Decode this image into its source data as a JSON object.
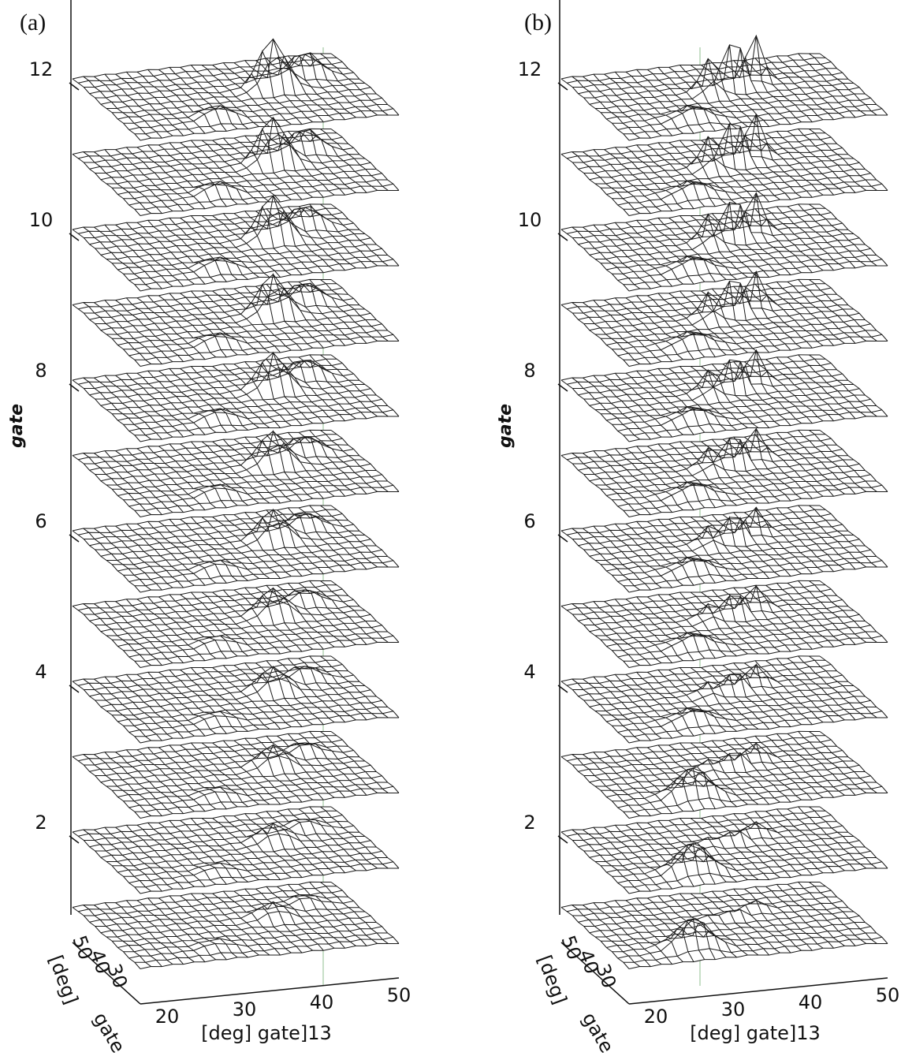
{
  "panels": [
    {
      "label": "(a)",
      "vertical_axis": {
        "title": "gate",
        "ticks": [
          "12",
          "10",
          "8",
          "6",
          "4",
          "2"
        ]
      },
      "depth_axis": {
        "ticks": [
          "50",
          "40",
          "30"
        ],
        "unit": "[deg]",
        "title": "gate"
      },
      "horizontal_axis": {
        "ticks": [
          "20",
          "30",
          "40",
          "50"
        ],
        "title": "[deg] gate]13"
      }
    },
    {
      "label": "(b)",
      "vertical_axis": {
        "title": "gate",
        "ticks": [
          "12",
          "10",
          "8",
          "6",
          "4",
          "2"
        ]
      },
      "depth_axis": {
        "ticks": [
          "50",
          "40",
          "30"
        ],
        "unit": "[deg]",
        "title": "gate"
      },
      "horizontal_axis": {
        "ticks": [
          "20",
          "30",
          "40",
          "50"
        ],
        "title": "[deg] gate]13"
      }
    }
  ]
}
